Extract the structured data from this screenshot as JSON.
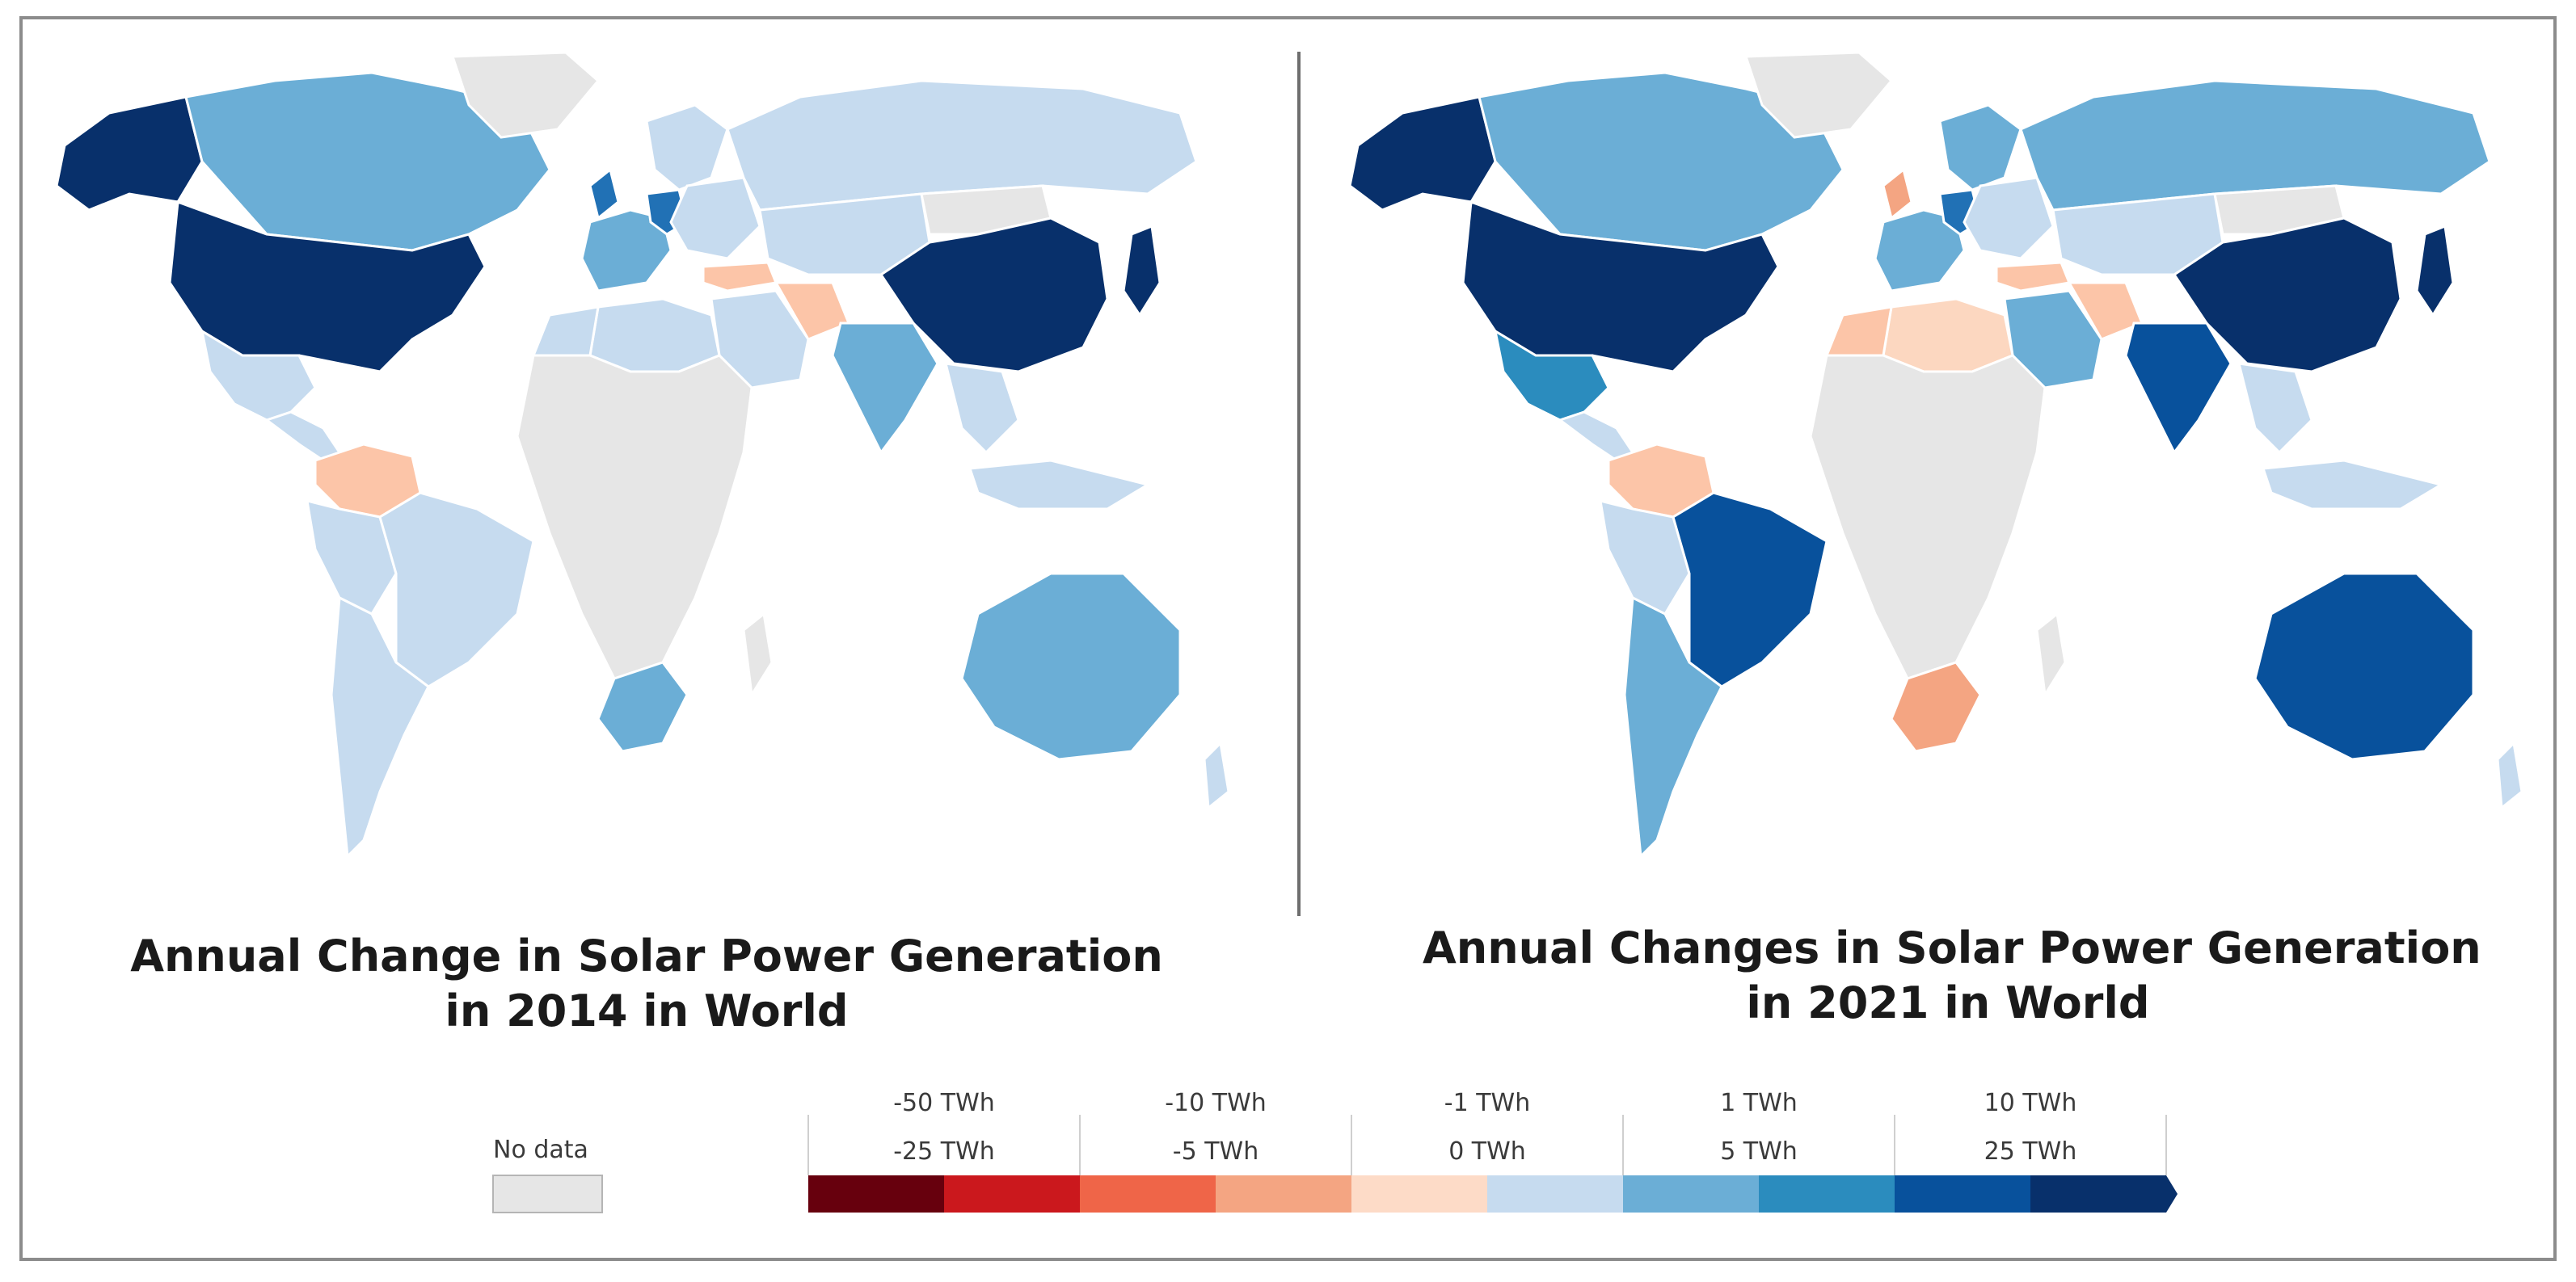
{
  "maps": {
    "left": {
      "caption_line1": "Annual Change in Solar Power Generation",
      "caption_line2": "in 2014 in World",
      "colors": {
        "usa": "#08306b",
        "china": "#08306b",
        "japan": "#08306b",
        "alaska": "#08306b",
        "canada": "#6baed6",
        "greenland": "#e6e6e6",
        "mexico": "#c6dbef",
        "central_america": "#c6dbef",
        "colombia_venezuela": "#fcc5a8",
        "brazil": "#c6dbef",
        "peru_bolivia": "#c6dbef",
        "chile_argentina": "#c6dbef",
        "uk": "#2171b5",
        "germany": "#2171b5",
        "western_europe": "#6baed6",
        "eastern_europe": "#c6dbef",
        "scandinavia": "#c6dbef",
        "russia": "#c6dbef",
        "central_asia": "#c6dbef",
        "middle_east": "#c6dbef",
        "iran": "#fcc5a8",
        "turkey": "#fcc5a8",
        "north_africa": "#c6dbef",
        "algeria": "#c6dbef",
        "subsaharan_africa": "#e6e6e6",
        "south_africa": "#6baed6",
        "madagascar": "#e6e6e6",
        "india": "#6baed6",
        "southeast_asia": "#c6dbef",
        "indonesia": "#c6dbef",
        "australia": "#6baed6",
        "new_zealand": "#c6dbef",
        "mongolia": "#e6e6e6"
      }
    },
    "right": {
      "caption_line1": "Annual Changes in Solar Power Generation",
      "caption_line2": "in 2021 in World",
      "colors": {
        "usa": "#08306b",
        "china": "#08306b",
        "japan": "#08306b",
        "alaska": "#08306b",
        "canada": "#6baed6",
        "greenland": "#e6e6e6",
        "mexico": "#2b8cbe",
        "central_america": "#c6dbef",
        "colombia_venezuela": "#fcc5a8",
        "brazil": "#08519c",
        "peru_bolivia": "#c6dbef",
        "chile_argentina": "#6baed6",
        "uk": "#f4a582",
        "germany": "#2171b5",
        "western_europe": "#6baed6",
        "eastern_europe": "#c6dbef",
        "scandinavia": "#6baed6",
        "russia": "#6baed6",
        "central_asia": "#c6dbef",
        "middle_east": "#6baed6",
        "iran": "#fcc5a8",
        "turkey": "#fcc5a8",
        "north_africa": "#fcd7c0",
        "algeria": "#fcc5a8",
        "subsaharan_africa": "#e6e6e6",
        "south_africa": "#f4a582",
        "madagascar": "#e6e6e6",
        "india": "#08519c",
        "southeast_asia": "#c6dbef",
        "indonesia": "#c6dbef",
        "australia": "#08519c",
        "new_zealand": "#c6dbef",
        "mongolia": "#e6e6e6"
      }
    }
  },
  "legend": {
    "no_data_label": "No data",
    "no_data_color": "#e6e6e6",
    "bins": [
      "#67000d",
      "#cb181d",
      "#ef6548",
      "#f4a582",
      "#fddbc7",
      "#c6dbef",
      "#6baed6",
      "#2b8cbe",
      "#08519c",
      "#08306b"
    ],
    "top_labels": [
      "-50 TWh",
      "-10 TWh",
      "-1 TWh",
      "1 TWh",
      "10 TWh"
    ],
    "bottom_labels": [
      "-25 TWh",
      "-5 TWh",
      "0 TWh",
      "5 TWh",
      "25 TWh"
    ]
  }
}
